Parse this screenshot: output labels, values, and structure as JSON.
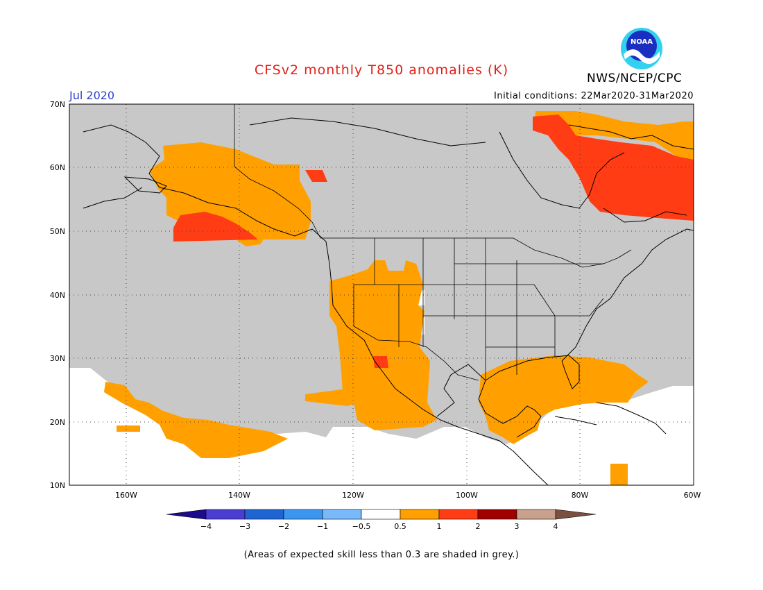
{
  "title": "CFSv2 monthly T850 anomalies (K)",
  "organization": "NWS/NCEP/CPC",
  "logo_text": "NOAA",
  "valid_month": "Jul 2020",
  "initial_conditions": "Initial conditions: 22Mar2020-31Mar2020",
  "footnote": "(Areas of expected skill less than 0.3 are shaded in grey.)",
  "map": {
    "lon_range": [
      -170,
      -60
    ],
    "lat_range": [
      10,
      70
    ],
    "lat_ticks": [
      {
        "value": 70,
        "label": "70N"
      },
      {
        "value": 60,
        "label": "60N"
      },
      {
        "value": 50,
        "label": "50N"
      },
      {
        "value": 40,
        "label": "40N"
      },
      {
        "value": 30,
        "label": "30N"
      },
      {
        "value": 20,
        "label": "20N"
      },
      {
        "value": 10,
        "label": "10N"
      }
    ],
    "lon_ticks": [
      {
        "value": -160,
        "label": "160W"
      },
      {
        "value": -140,
        "label": "140W"
      },
      {
        "value": -120,
        "label": "120W"
      },
      {
        "value": -100,
        "label": "100W"
      },
      {
        "value": -80,
        "label": "80W"
      },
      {
        "value": -60,
        "label": "60W"
      }
    ],
    "colors": {
      "low_skill": "#c8c8c8",
      "no_anomaly": "#ffffff",
      "anom_0_5_1": "#ffa000",
      "anom_1_2": "#ff3c14",
      "coast": "#000000"
    }
  },
  "colorbar": {
    "labels": [
      "−4",
      "−3",
      "−2",
      "−1",
      "−0.5",
      "0.5",
      "1",
      "2",
      "3",
      "4"
    ],
    "colors": [
      "#1e0a8c",
      "#4b3cd2",
      "#1e64d2",
      "#3c96f0",
      "#78b9fa",
      "#ffffff",
      "#ffa000",
      "#ff3c14",
      "#a00000",
      "#c8a08c",
      "#7a5040"
    ]
  }
}
